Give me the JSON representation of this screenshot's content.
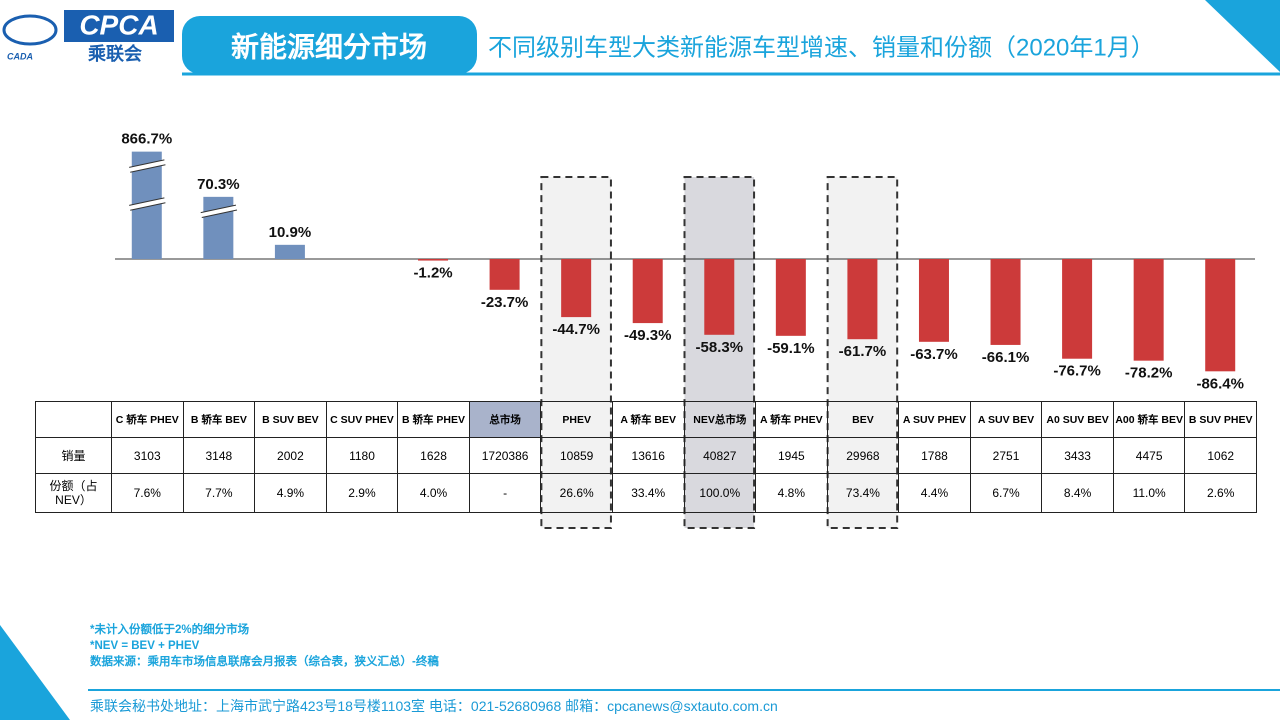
{
  "header": {
    "logo": "CPCA",
    "logo_sub": "乘联会",
    "logo_small": "CADA",
    "section": "新能源细分市场",
    "title": "不同级别车型大类新能源车型增速、销量和份额（2020年1月）"
  },
  "chart_data": {
    "type": "bar",
    "categories": [
      "C 轿车 PHEV",
      "B 轿车 BEV",
      "B SUV BEV",
      "C SUV PHEV",
      "B 轿车 PHEV",
      "总市场",
      "PHEV",
      "A 轿车 BEV",
      "NEV总市场",
      "A 轿车 PHEV",
      "BEV",
      "A SUV PHEV",
      "A SUV BEV",
      "A0 SUV BEV",
      "A00 轿车 BEV",
      "B SUV PHEV"
    ],
    "values": [
      866.7,
      70.3,
      10.9,
      null,
      -1.2,
      -23.7,
      -44.7,
      -49.3,
      -58.3,
      -59.1,
      -61.7,
      -63.7,
      -66.1,
      -76.7,
      -78.2,
      -86.4
    ],
    "value_labels": [
      "866.7%",
      "70.3%",
      "10.9%",
      null,
      "-1.2%",
      "-23.7%",
      "-44.7%",
      "-49.3%",
      "-58.3%",
      "-59.1%",
      "-61.7%",
      "-63.7%",
      "-66.1%",
      "-76.7%",
      "-78.2%",
      "-86.4%"
    ],
    "color_positive": "#7090bd",
    "color_negative": "#cc3a3a"
  },
  "table": {
    "row_labels": [
      "销量",
      "份额（占NEV）"
    ],
    "sales": [
      3103,
      3148,
      2002,
      1180,
      1628,
      1720386,
      10859,
      13616,
      40827,
      1945,
      29968,
      1788,
      2751,
      3433,
      4475,
      1062
    ],
    "shares": [
      "7.6%",
      "7.7%",
      "4.9%",
      "2.9%",
      "4.0%",
      "-",
      "26.6%",
      "33.4%",
      "100.0%",
      "4.8%",
      "73.4%",
      "4.4%",
      "6.7%",
      "8.4%",
      "11.0%",
      "2.6%"
    ]
  },
  "notes": [
    "*未计入份额低于2%的细分市场",
    "*NEV = BEV + PHEV",
    "数据来源：乘用车市场信息联席会月报表（综合表，狭义汇总）-终稿"
  ],
  "footer": "乘联会秘书处地址：上海市武宁路423号18号楼1103室  电话：021-52680968   邮箱：cpcanews@sxtauto.com.cn"
}
